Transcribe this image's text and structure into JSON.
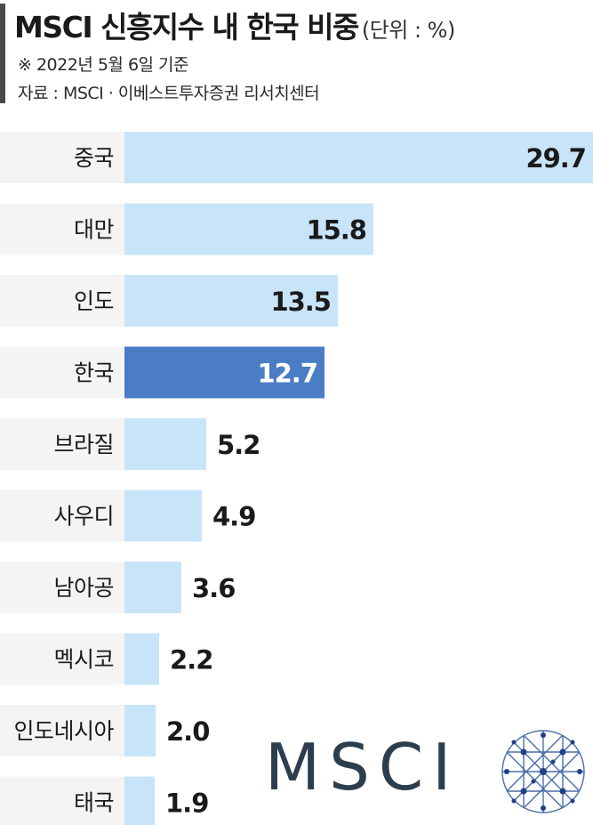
{
  "header": {
    "title": "MSCI 신흥지수 내 한국 비중",
    "unit": "(단위 : %)",
    "note": "※ 2022년 5월 6일 기준",
    "source": "자료 : MSCI · 이베스트투자증권 리서치센터"
  },
  "logo": {
    "text": "MSCI",
    "icon": "msci-globe-icon"
  },
  "colors": {
    "bar": "#c8e4f8",
    "highlight": "#4a7dc4",
    "label_bg": "#f4f4f4"
  },
  "chart_data": {
    "type": "bar",
    "orientation": "horizontal",
    "title": "MSCI 신흥지수 내 한국 비중",
    "unit": "%",
    "categories": [
      "중국",
      "대만",
      "인도",
      "한국",
      "브라질",
      "사우디",
      "남아공",
      "멕시코",
      "인도네시아",
      "태국"
    ],
    "values": [
      29.7,
      15.8,
      13.5,
      12.7,
      5.2,
      4.9,
      3.6,
      2.2,
      2.0,
      1.9
    ],
    "value_labels": [
      "29.7",
      "15.8",
      "13.5",
      "12.7",
      "5.2",
      "4.9",
      "3.6",
      "2.2",
      "2.0",
      "1.9"
    ],
    "highlight": "한국",
    "xlim": [
      0,
      29.7
    ],
    "grid": false,
    "legend": "none"
  }
}
